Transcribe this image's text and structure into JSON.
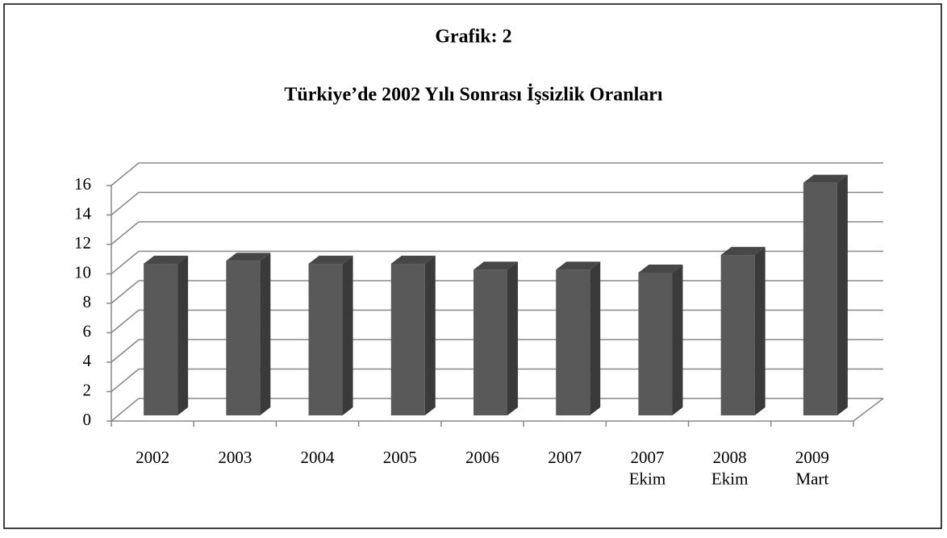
{
  "chart_data": {
    "type": "bar3d",
    "title": "Grafik: 2",
    "subtitle": "Türkiye’de 2002 Yılı Sonrası İşsizlik Oranları",
    "categories": [
      "2002",
      "2003",
      "2004",
      "2005",
      "2006",
      "2007",
      "2007\nEkim",
      "2008\nEkim",
      "2009\nMart"
    ],
    "values": [
      10.3,
      10.5,
      10.3,
      10.3,
      9.9,
      9.9,
      9.7,
      10.9,
      15.8
    ],
    "color": "#595959",
    "ylim": [
      0,
      16
    ],
    "yticks": [
      0,
      2,
      4,
      6,
      8,
      10,
      12,
      14,
      16
    ],
    "grid": true
  }
}
